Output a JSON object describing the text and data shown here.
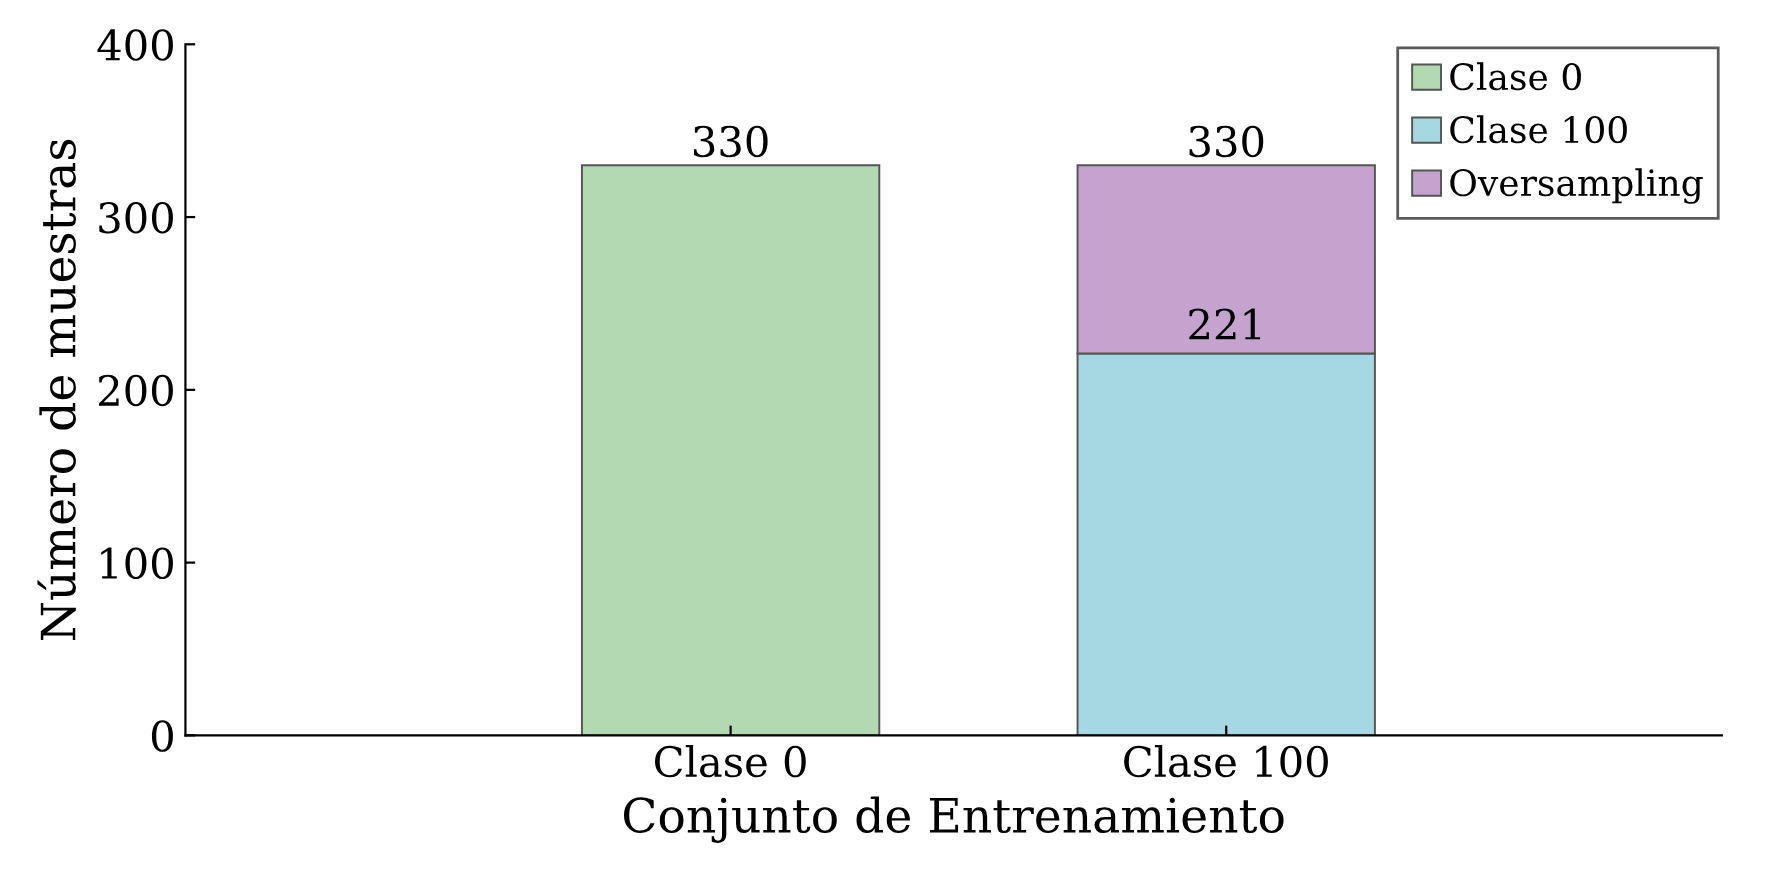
{
  "chart_data": {
    "type": "bar",
    "stacked": true,
    "xlabel": "Conjunto de Entrenamiento",
    "ylabel": "Número de muestras",
    "categories": [
      "Clase 0",
      "Clase 100"
    ],
    "series": [
      {
        "name": "Clase 0",
        "color": "#b3d9b3",
        "values": [
          330,
          null
        ]
      },
      {
        "name": "Clase 100",
        "color": "#a5d8e3",
        "values": [
          null,
          221
        ],
        "value_labels": [
          null,
          "221"
        ]
      },
      {
        "name": "Oversampling",
        "color": "#c5a3cf",
        "values": [
          null,
          109
        ]
      }
    ],
    "totals": [
      "330",
      "330"
    ],
    "ylim": [
      0,
      400
    ],
    "yticks": [
      0,
      100,
      200,
      300,
      400
    ],
    "grid": false,
    "legend": "top right"
  }
}
